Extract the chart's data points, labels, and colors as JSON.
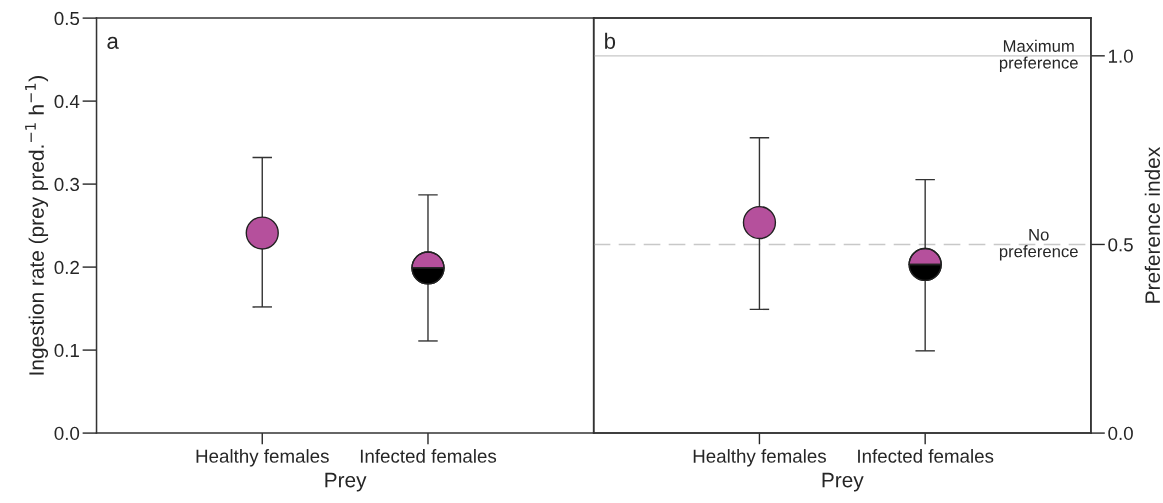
{
  "chart_data": [
    {
      "type": "scatter",
      "xlabel": "Prey",
      "ylabel": "Ingestion rate (prey pred.$^{−1}$ h$^{−1}$)",
      "categories": [
        "Healthy females",
        "Infected females"
      ],
      "series": [
        {
          "color": "#b5509c",
          "values": [
            0.241,
            null
          ],
          "errors": [
            [
              0.152,
              0.332
            ],
            null
          ]
        },
        {
          "color": "#b5509c",
          "values": [
            null,
            0.199
          ],
          "errors": [
            null,
            [
              0.111,
              0.287
            ]
          ]
        }
      ],
      "ylim": [
        0,
        0.5
      ],
      "yticks": [
        {
          "value": 0,
          "label": "0.0"
        },
        0.1,
        0.2,
        0.3,
        0.4,
        0.5
      ],
      "marker": "circle",
      "grid": false,
      "annotations": [
        "a"
      ]
    },
    {
      "type": "scatter",
      "xlabel": "Prey",
      "y2label": "Preference index",
      "categories": [
        "Healthy females",
        "Infected females"
      ],
      "series": [
        {
          "color": "#b5509c",
          "values": [
            0.558,
            null
          ],
          "errors": [
            [
              0.328,
              0.783
            ],
            null
          ],
          "axis": "y2"
        },
        {
          "color": "#b5509c",
          "values": [
            null,
            0.447
          ],
          "errors": [
            null,
            [
              0.218,
              0.672
            ]
          ],
          "axis": "y2"
        }
      ],
      "y2lim": [
        0,
        1.1
      ],
      "y2ticks": [
        {
          "value": 0,
          "label": "0.0"
        },
        0.5,
        {
          "value": 1,
          "label": "1.0"
        }
      ],
      "marker": "circle",
      "grid": false,
      "annotations": [
        "b"
      ],
      "ref_lines": [
        {
          "axis": "y2",
          "value": 1,
          "label": "Maximum\npreference",
          "color": "#c8c8c8",
          "line_style": "solid"
        },
        {
          "axis": "y2",
          "value": 0.5,
          "label": "No\npreference",
          "color": "#c8c8c8",
          "line_style": "dashed"
        }
      ]
    }
  ]
}
